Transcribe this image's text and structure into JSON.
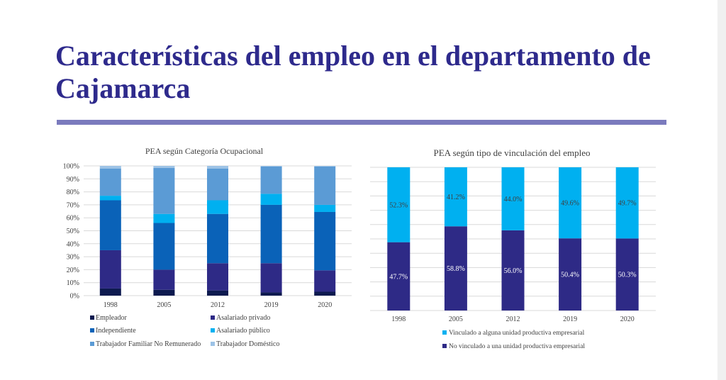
{
  "slide": {
    "title": "Características del empleo en el departamento de Cajamarca"
  },
  "chart_data": [
    {
      "type": "bar",
      "stacked": true,
      "title": "PEA según Categoría Ocupacional",
      "categories": [
        "1998",
        "2005",
        "2012",
        "2019",
        "2020"
      ],
      "ylim": [
        0,
        100
      ],
      "yticks": [
        "0%",
        "10%",
        "20%",
        "30%",
        "40%",
        "50%",
        "60%",
        "70%",
        "80%",
        "90%",
        "100%"
      ],
      "grid": true,
      "legend": "bottom",
      "series": [
        {
          "name": "Empleador",
          "color": "#0d1a4f",
          "values": [
            5.5,
            4.5,
            4.0,
            2.5,
            3.0
          ]
        },
        {
          "name": "Asalariado privado",
          "color": "#2e2a86",
          "values": [
            29.5,
            15.5,
            21.0,
            22.5,
            16.5
          ]
        },
        {
          "name": "Independiente",
          "color": "#0a62b8",
          "values": [
            38.5,
            36.0,
            38.0,
            45.0,
            45.0
          ]
        },
        {
          "name": "Asalariado público",
          "color": "#00b0f0",
          "values": [
            3.5,
            7.0,
            10.5,
            8.5,
            5.5
          ]
        },
        {
          "name": "Trabajador Familiar No Remunerado",
          "color": "#5b9bd5",
          "values": [
            21.0,
            35.5,
            24.5,
            21.0,
            29.5
          ]
        },
        {
          "name": "Trabajador Doméstico",
          "color": "#9dc3e6",
          "values": [
            2.0,
            1.5,
            2.0,
            0.5,
            0.5
          ]
        }
      ]
    },
    {
      "type": "bar",
      "stacked": true,
      "title": "PEA según tipo de vinculación del empleo",
      "categories": [
        "1998",
        "2005",
        "2012",
        "2019",
        "2020"
      ],
      "ylim": [
        0,
        100
      ],
      "grid": true,
      "legend": "bottom",
      "series": [
        {
          "name": "No vinculado a una unidad productiva empresarial",
          "color": "#2e2a86",
          "values": [
            47.7,
            58.8,
            56.0,
            50.4,
            50.3
          ],
          "labels": [
            "47.7%",
            "58.8%",
            "56.0%",
            "50.4%",
            "50.3%"
          ]
        },
        {
          "name": "Vinculado a alguna unidad productiva empresarial",
          "color": "#00b0f0",
          "values": [
            52.3,
            41.2,
            44.0,
            49.6,
            49.7
          ],
          "labels": [
            "52.3%",
            "41.2%",
            "44.0%",
            "49.6%",
            "49.7%"
          ]
        }
      ]
    }
  ]
}
